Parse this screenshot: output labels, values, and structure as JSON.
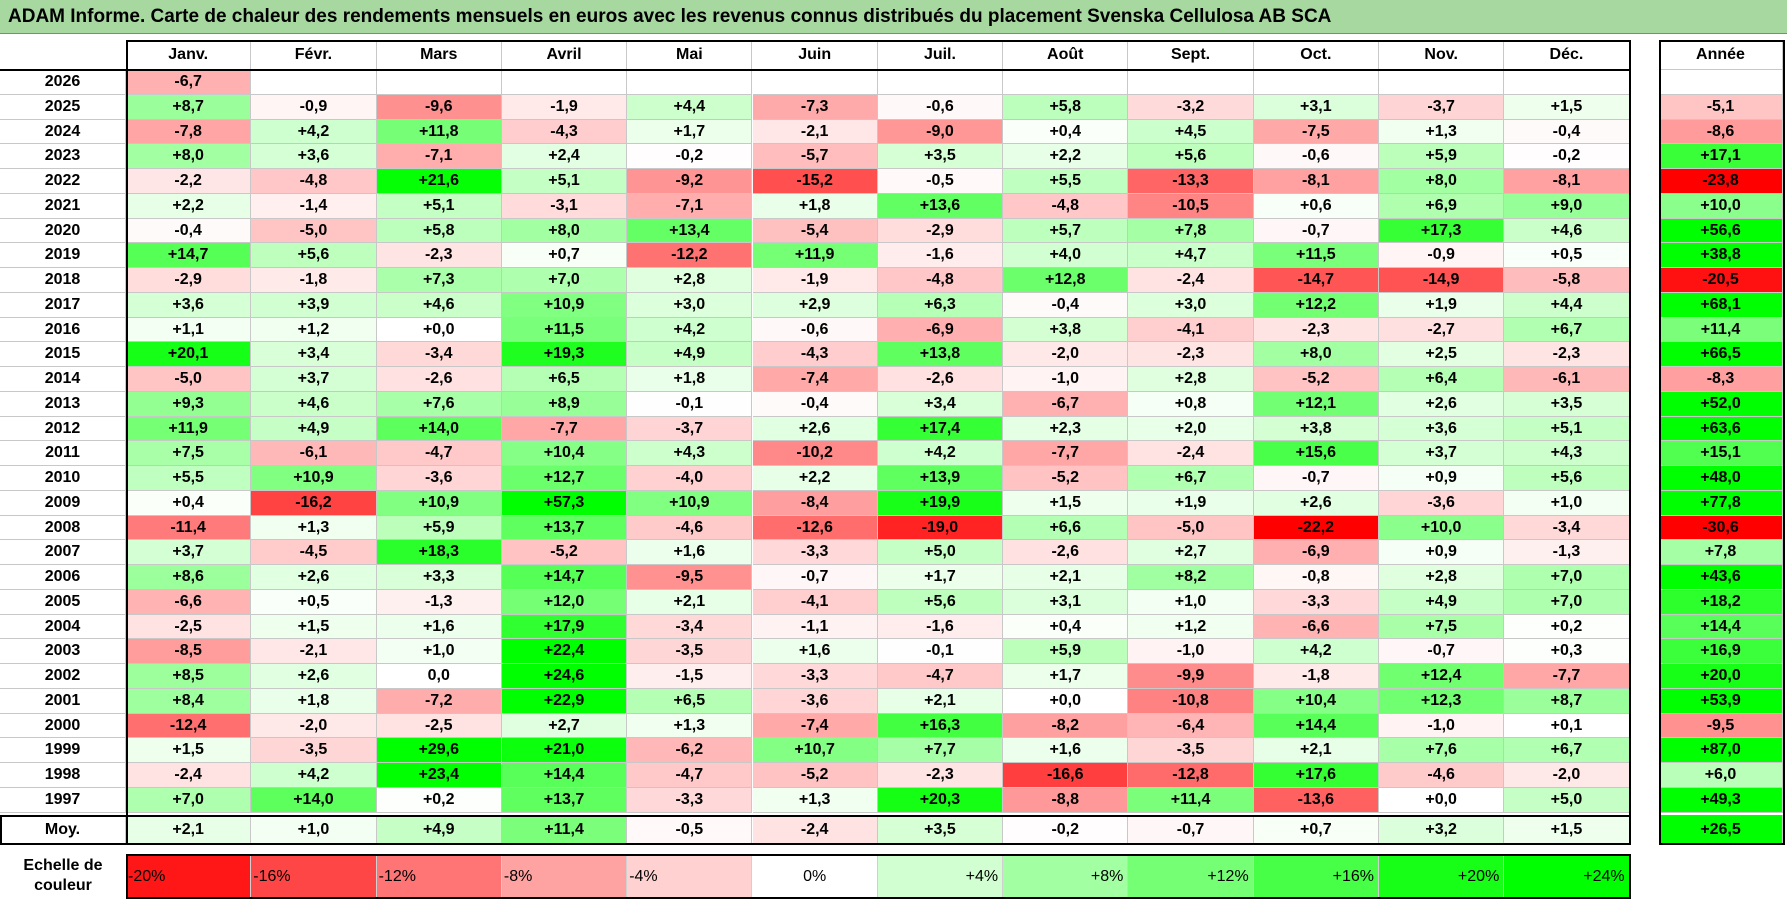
{
  "title": "ADAM Informe. Carte de chaleur des rendements mensuels en euros avec les revenus connus distribués du placement Svenska Cellulosa AB SCA",
  "chart_data": {
    "type": "heatmap",
    "months": [
      "Janv.",
      "Févr.",
      "Mars",
      "Avril",
      "Mai",
      "Juin",
      "Juil.",
      "Août",
      "Sept.",
      "Oct.",
      "Nov.",
      "Déc."
    ],
    "annual_label": "Année",
    "rows": [
      {
        "year": "2026",
        "months": [
          "-6,7",
          "",
          "",
          "",
          "",
          "",
          "",
          "",
          "",
          "",
          "",
          ""
        ],
        "annual": ""
      },
      {
        "year": "2025",
        "months": [
          "+8,7",
          "-0,9",
          "-9,6",
          "-1,9",
          "+4,4",
          "-7,3",
          "-0,6",
          "+5,8",
          "-3,2",
          "+3,1",
          "-3,7",
          "+1,5"
        ],
        "annual": "-5,1"
      },
      {
        "year": "2024",
        "months": [
          "-7,8",
          "+4,2",
          "+11,8",
          "-4,3",
          "+1,7",
          "-2,1",
          "-9,0",
          "+0,4",
          "+4,5",
          "-7,5",
          "+1,3",
          "-0,4"
        ],
        "annual": "-8,6"
      },
      {
        "year": "2023",
        "months": [
          "+8,0",
          "+3,6",
          "-7,1",
          "+2,4",
          "-0,2",
          "-5,7",
          "+3,5",
          "+2,2",
          "+5,6",
          "-0,6",
          "+5,9",
          "-0,2"
        ],
        "annual": "+17,1"
      },
      {
        "year": "2022",
        "months": [
          "-2,2",
          "-4,8",
          "+21,6",
          "+5,1",
          "-9,2",
          "-15,2",
          "-0,5",
          "+5,5",
          "-13,3",
          "-8,1",
          "+8,0",
          "-8,1"
        ],
        "annual": "-23,8"
      },
      {
        "year": "2021",
        "months": [
          "+2,2",
          "-1,4",
          "+5,1",
          "-3,1",
          "-7,1",
          "+1,8",
          "+13,6",
          "-4,8",
          "-10,5",
          "+0,6",
          "+6,9",
          "+9,0"
        ],
        "annual": "+10,0"
      },
      {
        "year": "2020",
        "months": [
          "-0,4",
          "-5,0",
          "+5,8",
          "+8,0",
          "+13,4",
          "-5,4",
          "-2,9",
          "+5,7",
          "+7,8",
          "-0,7",
          "+17,3",
          "+4,6"
        ],
        "annual": "+56,6"
      },
      {
        "year": "2019",
        "months": [
          "+14,7",
          "+5,6",
          "-2,3",
          "+0,7",
          "-12,2",
          "+11,9",
          "-1,6",
          "+4,0",
          "+4,7",
          "+11,5",
          "-0,9",
          "+0,5"
        ],
        "annual": "+38,8"
      },
      {
        "year": "2018",
        "months": [
          "-2,9",
          "-1,8",
          "+7,3",
          "+7,0",
          "+2,8",
          "-1,9",
          "-4,8",
          "+12,8",
          "-2,4",
          "-14,7",
          "-14,9",
          "-5,8"
        ],
        "annual": "-20,5"
      },
      {
        "year": "2017",
        "months": [
          "+3,6",
          "+3,9",
          "+4,6",
          "+10,9",
          "+3,0",
          "+2,9",
          "+6,3",
          "-0,4",
          "+3,0",
          "+12,2",
          "+1,9",
          "+4,4"
        ],
        "annual": "+68,1"
      },
      {
        "year": "2016",
        "months": [
          "+1,1",
          "+1,2",
          "+0,0",
          "+11,5",
          "+4,2",
          "-0,6",
          "-6,9",
          "+3,8",
          "-4,1",
          "-2,3",
          "-2,7",
          "+6,7"
        ],
        "annual": "+11,4"
      },
      {
        "year": "2015",
        "months": [
          "+20,1",
          "+3,4",
          "-3,4",
          "+19,3",
          "+4,9",
          "-4,3",
          "+13,8",
          "-2,0",
          "-2,3",
          "+8,0",
          "+2,5",
          "-2,3"
        ],
        "annual": "+66,5"
      },
      {
        "year": "2014",
        "months": [
          "-5,0",
          "+3,7",
          "-2,6",
          "+6,5",
          "+1,8",
          "-7,4",
          "-2,6",
          "-1,0",
          "+2,8",
          "-5,2",
          "+6,4",
          "-6,1"
        ],
        "annual": "-8,3"
      },
      {
        "year": "2013",
        "months": [
          "+9,3",
          "+4,6",
          "+7,6",
          "+8,9",
          "-0,1",
          "-0,4",
          "+3,4",
          "-6,7",
          "+0,8",
          "+12,1",
          "+2,6",
          "+3,5"
        ],
        "annual": "+52,0"
      },
      {
        "year": "2012",
        "months": [
          "+11,9",
          "+4,9",
          "+14,0",
          "-7,7",
          "-3,7",
          "+2,6",
          "+17,4",
          "+2,3",
          "+2,0",
          "+3,8",
          "+3,6",
          "+5,1"
        ],
        "annual": "+63,6"
      },
      {
        "year": "2011",
        "months": [
          "+7,5",
          "-6,1",
          "-4,7",
          "+10,4",
          "+4,3",
          "-10,2",
          "+4,2",
          "-7,7",
          "-2,4",
          "+15,6",
          "+3,7",
          "+4,3"
        ],
        "annual": "+15,1"
      },
      {
        "year": "2010",
        "months": [
          "+5,5",
          "+10,9",
          "-3,6",
          "+12,7",
          "-4,0",
          "+2,2",
          "+13,9",
          "-5,2",
          "+6,7",
          "-0,7",
          "+0,9",
          "+5,6"
        ],
        "annual": "+48,0"
      },
      {
        "year": "2009",
        "months": [
          "+0,4",
          "-16,2",
          "+10,9",
          "+57,3",
          "+10,9",
          "-8,4",
          "+19,9",
          "+1,5",
          "+1,9",
          "+2,6",
          "-3,6",
          "+1,0"
        ],
        "annual": "+77,8"
      },
      {
        "year": "2008",
        "months": [
          "-11,4",
          "+1,3",
          "+5,9",
          "+13,7",
          "-4,6",
          "-12,6",
          "-19,0",
          "+6,6",
          "-5,0",
          "-22,2",
          "+10,0",
          "-3,4"
        ],
        "annual": "-30,6"
      },
      {
        "year": "2007",
        "months": [
          "+3,7",
          "-4,5",
          "+18,3",
          "-5,2",
          "+1,6",
          "-3,3",
          "+5,0",
          "-2,6",
          "+2,7",
          "-6,9",
          "+0,9",
          "-1,3"
        ],
        "annual": "+7,8"
      },
      {
        "year": "2006",
        "months": [
          "+8,6",
          "+2,6",
          "+3,3",
          "+14,7",
          "-9,5",
          "-0,7",
          "+1,7",
          "+2,1",
          "+8,2",
          "-0,8",
          "+2,8",
          "+7,0"
        ],
        "annual": "+43,6"
      },
      {
        "year": "2005",
        "months": [
          "-6,6",
          "+0,5",
          "-1,3",
          "+12,0",
          "+2,1",
          "-4,1",
          "+5,6",
          "+3,1",
          "+1,0",
          "-3,3",
          "+4,9",
          "+7,0"
        ],
        "annual": "+18,2"
      },
      {
        "year": "2004",
        "months": [
          "-2,5",
          "+1,5",
          "+1,6",
          "+17,9",
          "-3,4",
          "-1,1",
          "-1,6",
          "+0,4",
          "+1,2",
          "-6,6",
          "+7,5",
          "+0,2"
        ],
        "annual": "+14,4"
      },
      {
        "year": "2003",
        "months": [
          "-8,5",
          "-2,1",
          "+1,0",
          "+22,4",
          "-3,5",
          "+1,6",
          "-0,1",
          "+5,9",
          "-1,0",
          "+4,2",
          "-0,7",
          "+0,3"
        ],
        "annual": "+16,9"
      },
      {
        "year": "2002",
        "months": [
          "+8,5",
          "+2,6",
          "0,0",
          "+24,6",
          "-1,5",
          "-3,3",
          "-4,7",
          "+1,7",
          "-9,9",
          "-1,8",
          "+12,4",
          "-7,7"
        ],
        "annual": "+20,0"
      },
      {
        "year": "2001",
        "months": [
          "+8,4",
          "+1,8",
          "-7,2",
          "+22,9",
          "+6,5",
          "-3,6",
          "+2,1",
          "+0,0",
          "-10,8",
          "+10,4",
          "+12,3",
          "+8,7"
        ],
        "annual": "+53,9"
      },
      {
        "year": "2000",
        "months": [
          "-12,4",
          "-2,0",
          "-2,5",
          "+2,7",
          "+1,3",
          "-7,4",
          "+16,3",
          "-8,2",
          "-6,4",
          "+14,4",
          "-1,0",
          "+0,1"
        ],
        "annual": "-9,5"
      },
      {
        "year": "1999",
        "months": [
          "+1,5",
          "-3,5",
          "+29,6",
          "+21,0",
          "-6,2",
          "+10,7",
          "+7,7",
          "+1,6",
          "-3,5",
          "+2,1",
          "+7,6",
          "+6,7"
        ],
        "annual": "+87,0"
      },
      {
        "year": "1998",
        "months": [
          "-2,4",
          "+4,2",
          "+23,4",
          "+14,4",
          "-4,7",
          "-5,2",
          "-2,3",
          "-16,6",
          "-12,8",
          "+17,6",
          "-4,6",
          "-2,0"
        ],
        "annual": "+6,0"
      },
      {
        "year": "1997",
        "months": [
          "+7,0",
          "+14,0",
          "+0,2",
          "+13,7",
          "-3,3",
          "+1,3",
          "+20,3",
          "-8,8",
          "+11,4",
          "-13,6",
          "+0,0",
          "+5,0"
        ],
        "annual": "+49,3"
      }
    ],
    "average": {
      "label": "Moy.",
      "months": [
        "+2,1",
        "+1,0",
        "+4,9",
        "+11,4",
        "-0,5",
        "-2,4",
        "+3,5",
        "-0,2",
        "-0,7",
        "+0,7",
        "+3,2",
        "+1,5"
      ],
      "annual": "+26,5"
    },
    "scale": {
      "label_line1": "Echelle de",
      "label_line2": "couleur",
      "steps": [
        "-20%",
        "-16%",
        "-12%",
        "-8%",
        "-4%",
        "0%",
        "+4%",
        "+8%",
        "+12%",
        "+16%",
        "+20%",
        "+24%"
      ],
      "values": [
        -20,
        -16,
        -12,
        -8,
        -4,
        0,
        4,
        8,
        12,
        16,
        20,
        24
      ]
    },
    "colors": {
      "negative": "#ff0000",
      "positive": "#00ff00",
      "neutral": "#ffffff"
    }
  }
}
